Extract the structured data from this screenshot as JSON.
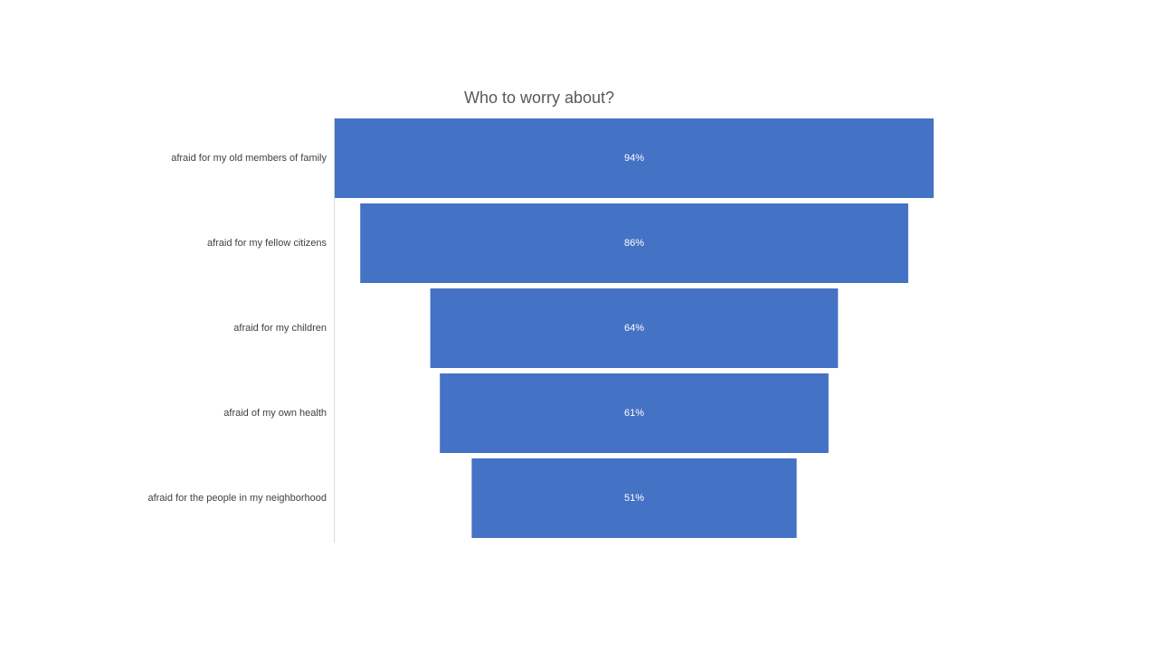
{
  "chart_data": {
    "type": "bar",
    "orientation": "horizontal",
    "style": "funnel",
    "title": "Who to worry about?",
    "categories": [
      "afraid for my old members of family",
      "afraid for my fellow citizens",
      "afraid for my children",
      "afraid of my own health",
      "afraid for the people in my neighborhood"
    ],
    "values": [
      94,
      86,
      64,
      61,
      51
    ],
    "labels": [
      "94%",
      "86%",
      "64%",
      "61%",
      "51%"
    ],
    "unit": "%",
    "xlim": [
      0,
      94
    ],
    "xlabel": "",
    "ylabel": "",
    "grid": false,
    "legend": "none",
    "bar_color": "#4472C4",
    "label_color": "#FFFFFF",
    "axis_color": "#D9D9D9",
    "text_color": "#404040"
  }
}
